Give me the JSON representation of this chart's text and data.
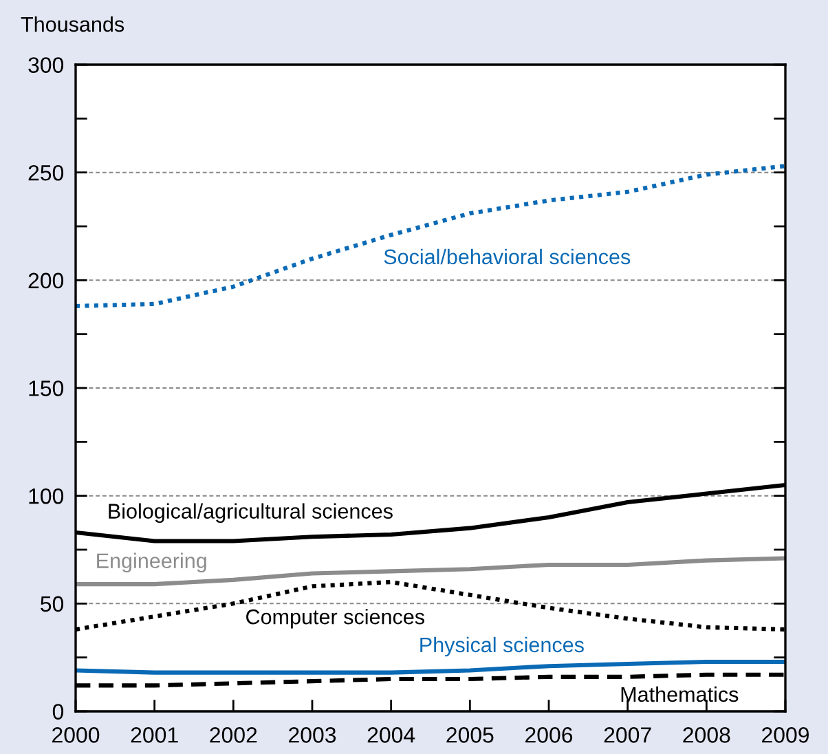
{
  "chart_data": {
    "type": "line",
    "ylabel": "Thousands",
    "x": [
      2000,
      2001,
      2002,
      2003,
      2004,
      2005,
      2006,
      2007,
      2008,
      2009
    ],
    "xlim": [
      2000,
      2009
    ],
    "xticks": [
      2000,
      2001,
      2002,
      2003,
      2004,
      2005,
      2006,
      2007,
      2008,
      2009
    ],
    "ylim": [
      0,
      300
    ],
    "yticks": [
      0,
      {
        "value": 25,
        "label": null
      },
      50,
      {
        "value": 75,
        "label": null
      },
      100,
      {
        "value": 125,
        "label": null
      },
      150,
      {
        "value": 175,
        "label": null
      },
      200,
      {
        "value": 225,
        "label": null
      },
      250,
      {
        "value": 275,
        "label": null
      },
      300
    ],
    "grid": "y",
    "legend": false,
    "series": [
      {
        "name": "Social/behavioral sciences",
        "color": "#0a6ab5",
        "line_style": "dotted",
        "values": [
          188,
          189,
          197,
          210,
          221,
          231,
          237,
          241,
          249,
          253
        ]
      },
      {
        "name": "Biological/agricultural sciences",
        "color": "#000000",
        "line_style": "solid",
        "values": [
          83,
          79,
          79,
          81,
          82,
          85,
          90,
          97,
          101,
          105
        ]
      },
      {
        "name": "Engineering",
        "color": "#8c8c8c",
        "line_style": "solid",
        "values": [
          59,
          59,
          61,
          64,
          65,
          66,
          68,
          68,
          70,
          71
        ]
      },
      {
        "name": "Computer sciences",
        "color": "#000000",
        "line_style": "dotted",
        "values": [
          38,
          44,
          50,
          58,
          60,
          54,
          48,
          43,
          39,
          38
        ]
      },
      {
        "name": "Physical sciences",
        "color": "#0a6ab5",
        "line_style": "solid",
        "values": [
          19,
          18,
          18,
          18,
          18,
          19,
          21,
          22,
          23,
          23
        ]
      },
      {
        "name": "Mathematics",
        "color": "#000000",
        "line_style": "dashed",
        "values": [
          12,
          12,
          13,
          14,
          15,
          15,
          16,
          16,
          17,
          17
        ]
      }
    ]
  }
}
